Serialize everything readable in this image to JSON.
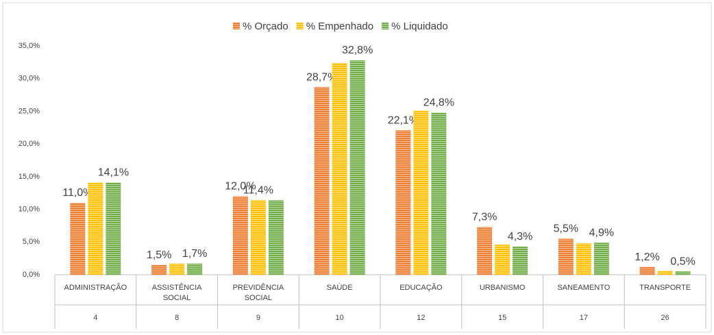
{
  "chart_data": {
    "type": "bar",
    "categories": [
      "ADMINISTRAÇÃO",
      "ASSISTÊNCIA SOCIAL",
      "PREVIDÊNCIA SOCIAL",
      "SAÚDE",
      "EDUCAÇÃO",
      "URBANISMO",
      "SANEAMENTO",
      "TRANSPORTE"
    ],
    "category_groups": [
      "4",
      "8",
      "9",
      "10",
      "12",
      "15",
      "17",
      "26"
    ],
    "series": [
      {
        "name": "% Orçado",
        "color": "#ED7D31",
        "values": [
          11.0,
          1.5,
          12.0,
          28.7,
          22.1,
          7.3,
          5.5,
          1.2
        ],
        "value_labels": [
          "11,0%",
          "1,5%",
          "12,0%",
          "28,7%",
          "22,1%",
          "7,3%",
          "5,5%",
          "1,2%"
        ]
      },
      {
        "name": "% Empenhado",
        "color": "#FFC000",
        "values": [
          14.1,
          1.7,
          11.4,
          32.4,
          25.1,
          4.6,
          4.8,
          0.6
        ],
        "value_labels": [
          null,
          null,
          "11,4%",
          null,
          null,
          null,
          null,
          null
        ]
      },
      {
        "name": "% Liquidado",
        "color": "#70AD47",
        "values": [
          14.1,
          1.7,
          11.4,
          32.8,
          24.8,
          4.3,
          4.9,
          0.5
        ],
        "value_labels": [
          "14,1%",
          "1,7%",
          null,
          "32,8%",
          "24,8%",
          "4,3%",
          "4,9%",
          "0,5%"
        ]
      }
    ],
    "ylim": [
      0,
      35
    ],
    "yticks": [
      {
        "value": 0,
        "label": "0,0%"
      },
      {
        "value": 5,
        "label": "5,0%"
      },
      {
        "value": 10,
        "label": "10,0%"
      },
      {
        "value": 15,
        "label": "15,0%"
      },
      {
        "value": 20,
        "label": "20,0%"
      },
      {
        "value": 25,
        "label": "25,0%"
      },
      {
        "value": 30,
        "label": "30,0%"
      },
      {
        "value": 35,
        "label": "35,0%"
      }
    ],
    "grid": false,
    "legend": "top"
  }
}
